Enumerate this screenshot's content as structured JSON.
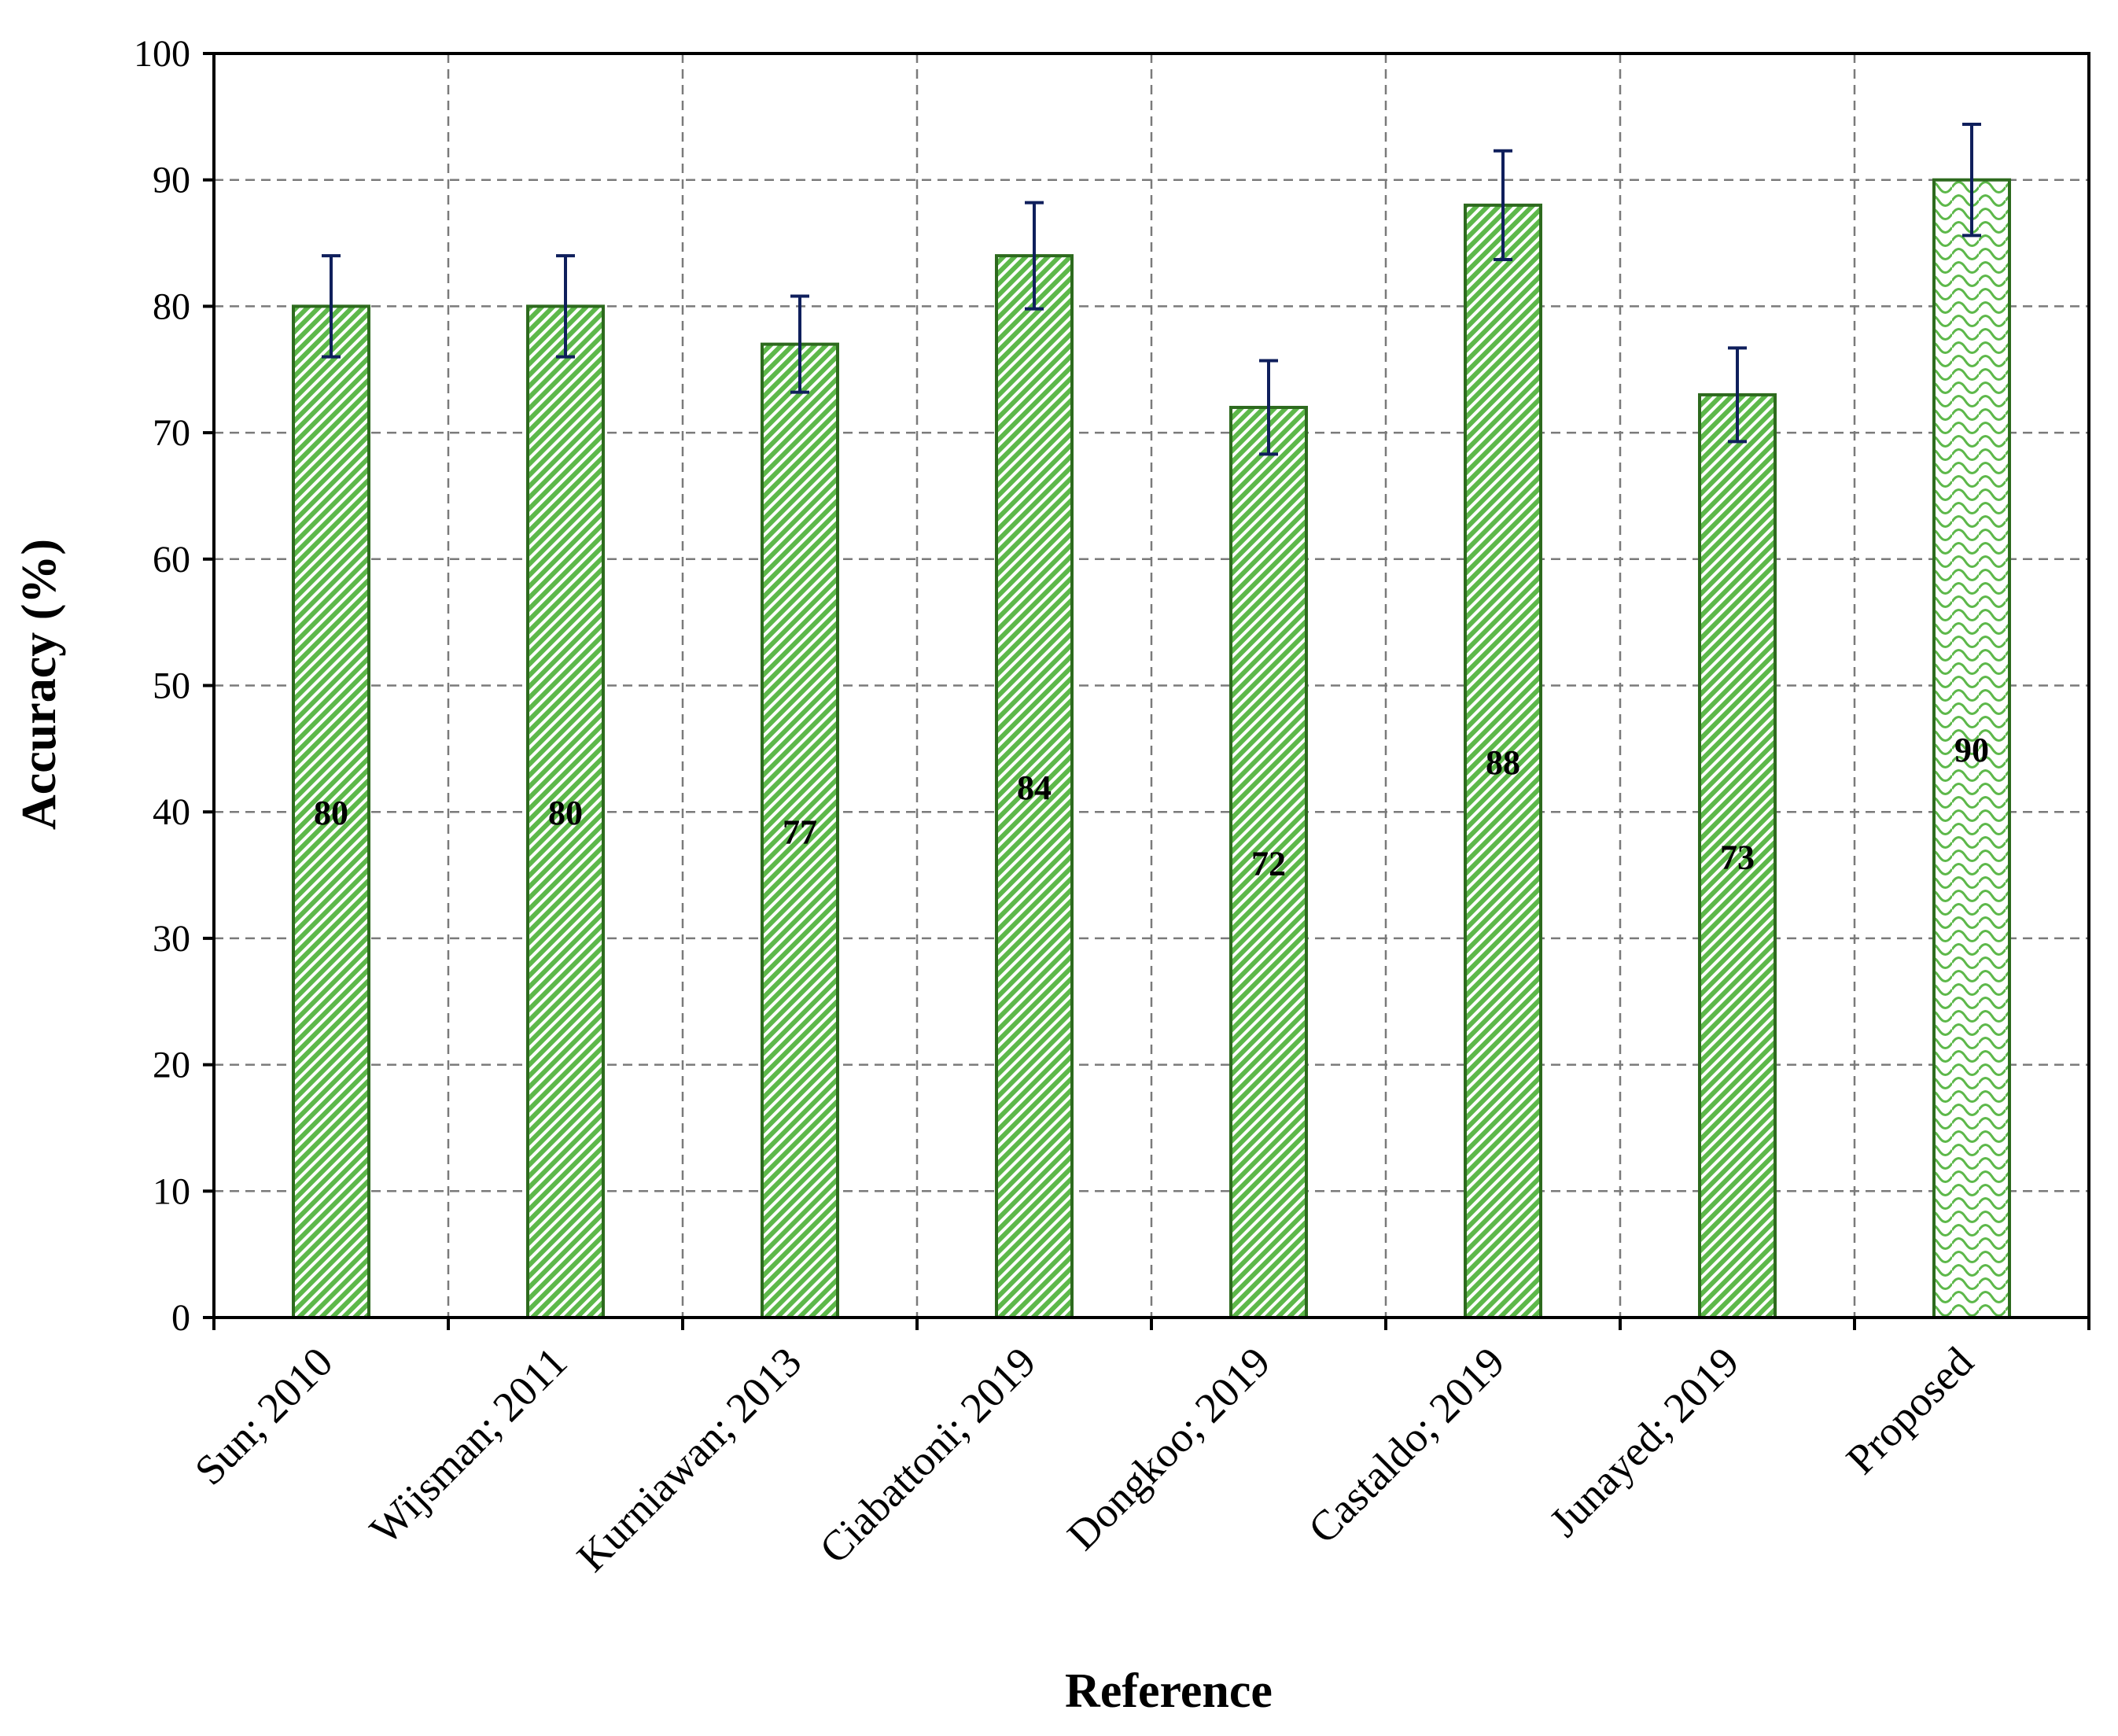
{
  "chart_data": {
    "type": "bar",
    "categories": [
      "Sun; 2010",
      "Wijsman; 2011",
      "Kurniawan; 2013",
      "Ciabattoni; 2019",
      "Dongkoo; 2019",
      "Castaldo; 2019",
      "Junayed; 2019",
      "Proposed"
    ],
    "values": [
      80,
      80,
      77,
      84,
      72,
      88,
      73,
      90
    ],
    "error": [
      4,
      4,
      3.8,
      4.2,
      3.7,
      4.3,
      3.7,
      4.4
    ],
    "value_labels": [
      "80",
      "80",
      "77",
      "84",
      "72",
      "88",
      "73",
      "90"
    ],
    "xlabel": "Reference",
    "ylabel": "Accuracy (%)",
    "ylim": [
      0,
      100
    ],
    "yticks": [
      0,
      10,
      20,
      30,
      40,
      50,
      60,
      70,
      80,
      90,
      100
    ],
    "grid": true,
    "colors": {
      "bar_fill": "#5db84a",
      "bar_stroke": "#2d6a1e",
      "highlight_fill": "#7fca6a",
      "error_bar": "#0f1f5c",
      "grid": "#7a7a7a"
    }
  }
}
